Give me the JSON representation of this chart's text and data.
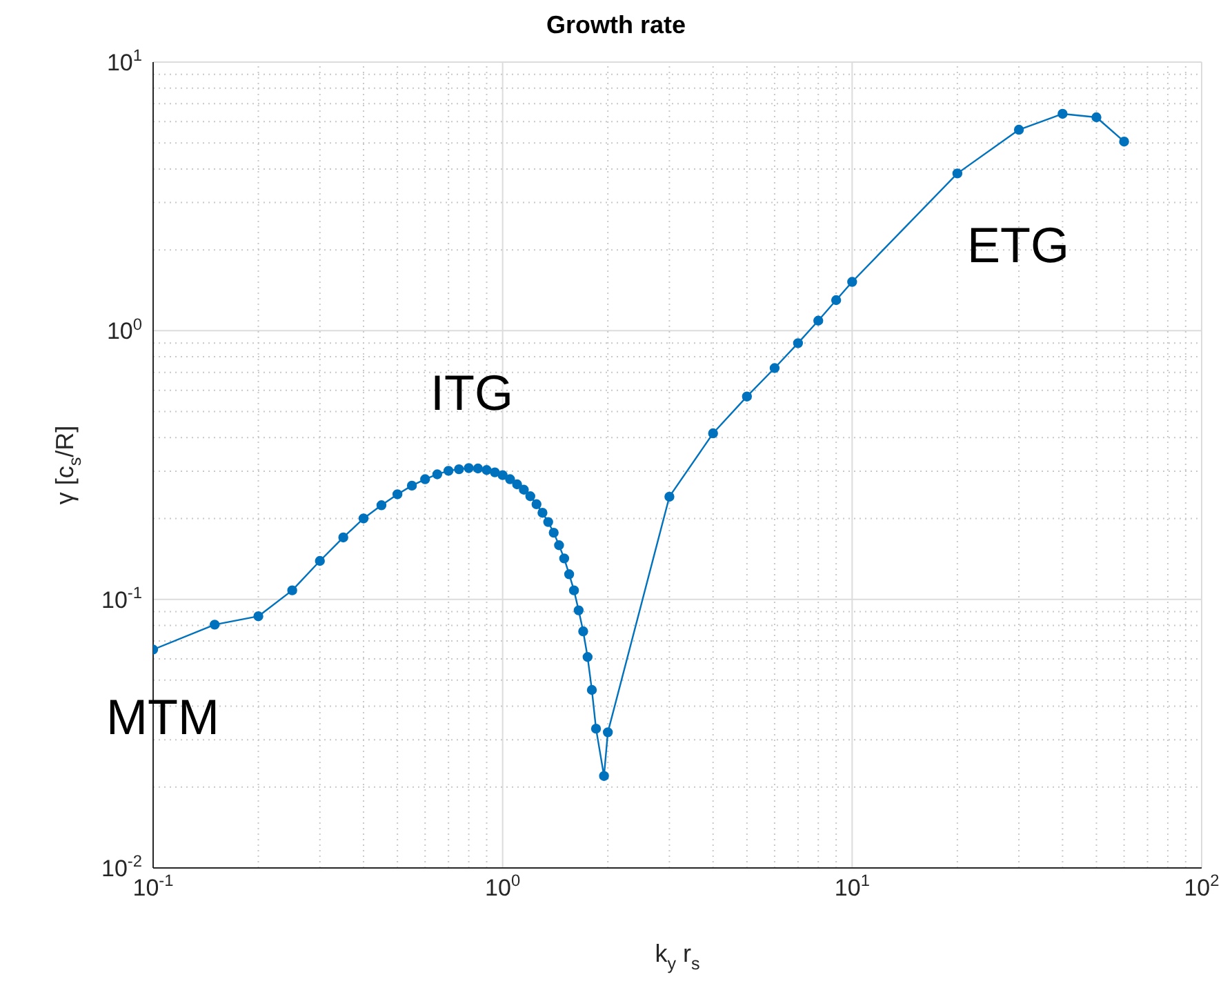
{
  "chart_data": {
    "type": "line",
    "title": "Growth rate",
    "xlabel": "k$_{y}$ r$_{s}$",
    "ylabel": "γ [c$_{s}$/R]",
    "log": "xy",
    "grid": true,
    "marker": "circle",
    "line_style": "solid",
    "xlim": [
      0.1,
      100
    ],
    "ylim": [
      0.01,
      10
    ],
    "xticks": [
      {
        "value": 0.1,
        "label": "10$^{-1}$"
      },
      {
        "value": 1,
        "label": "10$^{0}$"
      },
      {
        "value": 10,
        "label": "10$^{1}$"
      },
      {
        "value": 100,
        "label": "10$^{2}$"
      }
    ],
    "yticks": [
      {
        "value": 0.01,
        "label": "10$^{-2}$"
      },
      {
        "value": 0.1,
        "label": "10$^{-1}$"
      },
      {
        "value": 1,
        "label": "10$^{0}$"
      },
      {
        "value": 10,
        "label": "10$^{1}$"
      }
    ],
    "annotations": [
      "ITG",
      "ETG",
      "MTM"
    ],
    "series": [
      {
        "color": "#0072bd",
        "x": [
          0.1,
          0.15,
          0.2,
          0.25,
          0.3,
          0.35,
          0.4,
          0.45,
          0.5,
          0.55,
          0.6,
          0.65,
          0.7,
          0.75,
          0.8,
          0.85,
          0.9,
          0.95,
          1.0,
          1.05,
          1.1,
          1.15,
          1.2,
          1.25,
          1.3,
          1.35,
          1.4,
          1.45,
          1.5,
          1.55,
          1.6,
          1.65,
          1.7,
          1.75,
          1.8,
          1.85,
          1.95,
          2.0,
          3,
          4,
          5,
          6,
          7,
          8,
          9,
          10,
          20,
          30,
          40,
          50,
          60
        ],
        "values": [
          0.065,
          0.0805,
          0.0865,
          0.108,
          0.139,
          0.17,
          0.2,
          0.224,
          0.246,
          0.265,
          0.28,
          0.292,
          0.301,
          0.305,
          0.308,
          0.307,
          0.303,
          0.297,
          0.29,
          0.28,
          0.268,
          0.256,
          0.242,
          0.226,
          0.21,
          0.194,
          0.177,
          0.159,
          0.142,
          0.124,
          0.108,
          0.091,
          0.076,
          0.061,
          0.046,
          0.033,
          0.022,
          0.032,
          0.241,
          0.415,
          0.569,
          0.726,
          0.899,
          1.09,
          1.3,
          1.52,
          3.85,
          5.6,
          6.42,
          6.23,
          5.06
        ]
      }
    ]
  }
}
